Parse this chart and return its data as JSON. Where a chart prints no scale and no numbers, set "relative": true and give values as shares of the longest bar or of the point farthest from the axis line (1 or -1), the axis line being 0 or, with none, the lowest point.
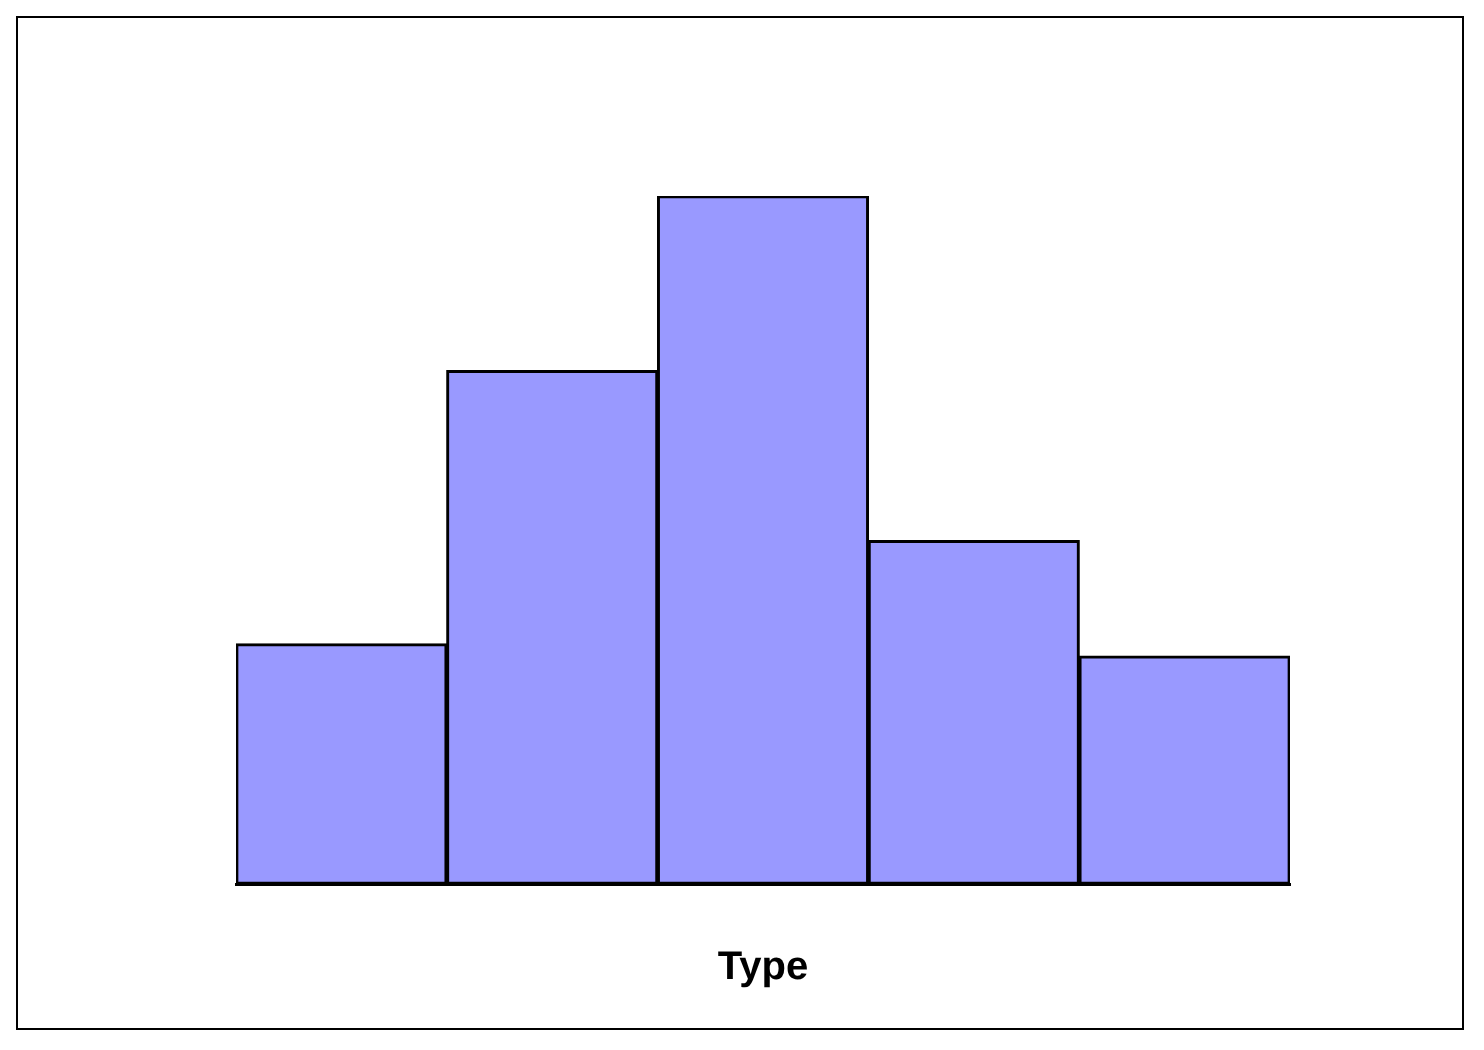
{
  "chart_data": {
    "type": "bar",
    "relative": true,
    "xlabel": "Type",
    "categories": [
      null,
      null,
      null,
      null,
      null
    ],
    "color": "#9999ff",
    "values": [
      0.349,
      0.746,
      1,
      0.499,
      0.331
    ]
  }
}
